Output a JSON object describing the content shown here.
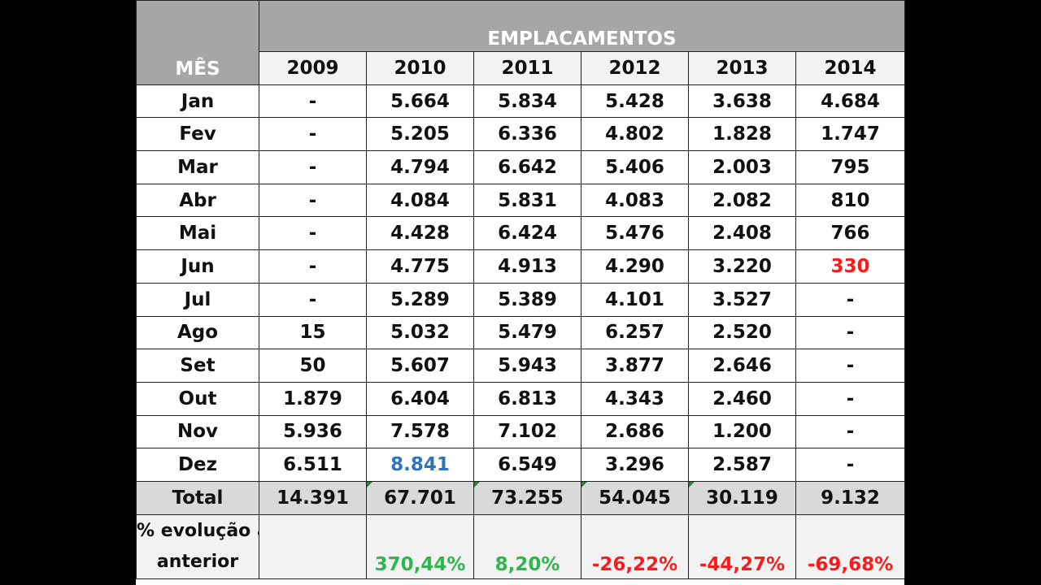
{
  "table": {
    "group_header": "EMPLACAMENTOS",
    "month_header": "MÊS",
    "years": [
      "2009",
      "2010",
      "2011",
      "2012",
      "2013",
      "2014"
    ],
    "rows": [
      {
        "month": "Jan",
        "values": [
          "-",
          "5.664",
          "5.834",
          "5.428",
          "3.638",
          "4.684"
        ]
      },
      {
        "month": "Fev",
        "values": [
          "-",
          "5.205",
          "6.336",
          "4.802",
          "1.828",
          "1.747"
        ]
      },
      {
        "month": "Mar",
        "values": [
          "-",
          "4.794",
          "6.642",
          "5.406",
          "2.003",
          "795"
        ]
      },
      {
        "month": "Abr",
        "values": [
          "-",
          "4.084",
          "5.831",
          "4.083",
          "2.082",
          "810"
        ]
      },
      {
        "month": "Mai",
        "values": [
          "-",
          "4.428",
          "6.424",
          "5.476",
          "2.408",
          "766"
        ]
      },
      {
        "month": "Jun",
        "values": [
          "-",
          "4.775",
          "4.913",
          "4.290",
          "3.220",
          "330"
        ]
      },
      {
        "month": "Jul",
        "values": [
          "-",
          "5.289",
          "5.389",
          "4.101",
          "3.527",
          "-"
        ]
      },
      {
        "month": "Ago",
        "values": [
          "15",
          "5.032",
          "5.479",
          "6.257",
          "2.520",
          "-"
        ]
      },
      {
        "month": "Set",
        "values": [
          "50",
          "5.607",
          "5.943",
          "3.877",
          "2.646",
          "-"
        ]
      },
      {
        "month": "Out",
        "values": [
          "1.879",
          "6.404",
          "6.813",
          "4.343",
          "2.460",
          "-"
        ]
      },
      {
        "month": "Nov",
        "values": [
          "5.936",
          "7.578",
          "7.102",
          "2.686",
          "1.200",
          "-"
        ]
      },
      {
        "month": "Dez",
        "values": [
          "6.511",
          "8.841",
          "6.549",
          "3.296",
          "2.587",
          "-"
        ]
      }
    ],
    "total_label": "Total",
    "totals": [
      "14.391",
      "67.701",
      "73.255",
      "54.045",
      "30.119",
      "9.132"
    ],
    "evolution_label_line1": "% evolução ano",
    "evolution_label_line2": "anterior",
    "evolution": [
      "",
      "370,44%",
      "8,20%",
      "-26,22%",
      "-44,27%",
      "-69,68%"
    ],
    "colors": {
      "header_gray": "#a6a6a6",
      "positive_green": "#2db84d",
      "negative_red": "#ff1a1a",
      "highlight_blue": "#2e75b6"
    }
  }
}
